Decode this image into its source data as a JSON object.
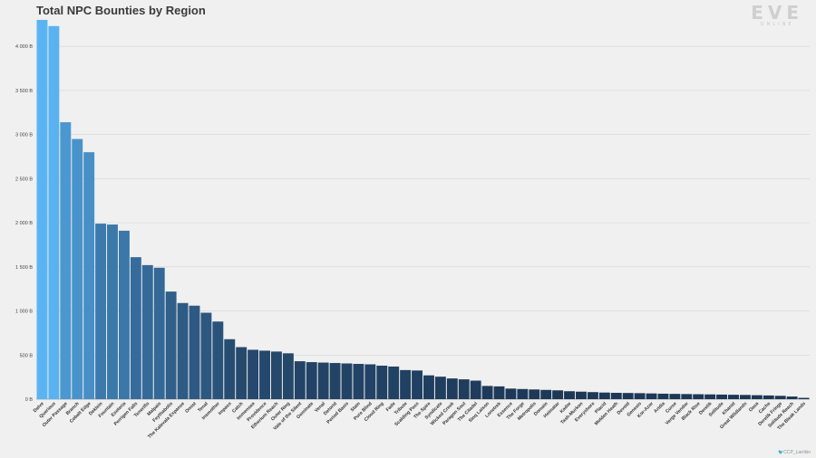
{
  "logo": {
    "main": "EVE",
    "sub": "ONLINE"
  },
  "credit": "CCP_Larrikin",
  "chart_data": {
    "type": "bar",
    "title": "Total NPC Bounties by Region",
    "xlabel": "",
    "ylabel": "",
    "ylim": [
      0,
      4300
    ],
    "yticks": [
      0,
      500,
      1000,
      1500,
      2000,
      2500,
      3000,
      3500,
      4000
    ],
    "ytick_labels": [
      "0 B",
      "500 B",
      "1 000 B",
      "1 500 B",
      "2 000 B",
      "2 500 B",
      "3 000 B",
      "3 500 B",
      "4 000 B"
    ],
    "grid": true,
    "categories": [
      "Delve",
      "Querious",
      "Outer Passage",
      "Branch",
      "Cobalt Edge",
      "Deklein",
      "Fountain",
      "Esoteria",
      "Perrigen Falls",
      "Tenerifis",
      "Malpais",
      "Feythabolis",
      "The Kalevala Expanse",
      "Omist",
      "Tenal",
      "Insmother",
      "Impass",
      "Catch",
      "Immensea",
      "Providence",
      "Etherium Reach",
      "Outer Ring",
      "Vale of the Silent",
      "Geminate",
      "Venal",
      "Detorid",
      "Period Basis",
      "Stain",
      "Pure Blind",
      "Cloud Ring",
      "Fade",
      "Tribute",
      "Scalding Pass",
      "The Spire",
      "Syndicate",
      "Wicked Creek",
      "Paragon Soul",
      "The Citadel",
      "Sinq Laison",
      "Lonetrek",
      "Essence",
      "The Forge",
      "Metropolis",
      "Domain",
      "Heimatar",
      "Kador",
      "Tash-Murkon",
      "Everyshore",
      "Placid",
      "Molden Heath",
      "Devoid",
      "Genesis",
      "Kor-Azor",
      "Aridia",
      "Curse",
      "Verge Vendor",
      "Black Rise",
      "Derelik",
      "Solitude",
      "Khanid",
      "Great Wildlands",
      "Oasa",
      "Cache",
      "Derelik Fringe",
      "Solitude Reach",
      "The Bleak Lands"
    ],
    "values": [
      4300,
      4230,
      3140,
      2950,
      2800,
      1990,
      1980,
      1910,
      1610,
      1520,
      1490,
      1220,
      1090,
      1060,
      980,
      880,
      680,
      590,
      560,
      550,
      540,
      520,
      430,
      420,
      415,
      410,
      405,
      400,
      395,
      380,
      370,
      330,
      325,
      270,
      255,
      235,
      225,
      210,
      150,
      145,
      120,
      115,
      110,
      105,
      100,
      90,
      85,
      80,
      75,
      72,
      70,
      68,
      65,
      62,
      60,
      58,
      56,
      54,
      52,
      50,
      48,
      45,
      42,
      38,
      30,
      15
    ],
    "colors": {
      "top": "#5bb4f2",
      "mid": "#3f7fb3",
      "low": "#1c3553"
    }
  }
}
